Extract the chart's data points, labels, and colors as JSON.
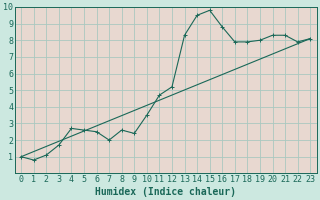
{
  "xlabel": "Humidex (Indice chaleur)",
  "ylabel": "",
  "fig_bg_color": "#cce8e0",
  "plot_bg_color": "#e8d8d0",
  "grid_color": "#aac8c0",
  "line_color": "#1a6858",
  "xlim": [
    -0.5,
    23.5
  ],
  "ylim": [
    0,
    10
  ],
  "xticks": [
    0,
    1,
    2,
    3,
    4,
    5,
    6,
    7,
    8,
    9,
    10,
    11,
    12,
    13,
    14,
    15,
    16,
    17,
    18,
    19,
    20,
    21,
    22,
    23
  ],
  "yticks": [
    1,
    2,
    3,
    4,
    5,
    6,
    7,
    8,
    9,
    10
  ],
  "curve1_x": [
    0,
    1,
    2,
    3,
    4,
    5,
    6,
    7,
    8,
    9,
    10,
    11,
    12,
    13,
    14,
    15,
    16,
    17,
    18,
    19,
    20,
    21,
    22,
    23
  ],
  "curve1_y": [
    1.0,
    0.8,
    1.1,
    1.7,
    2.7,
    2.6,
    2.5,
    2.0,
    2.6,
    2.4,
    3.5,
    4.7,
    5.2,
    8.3,
    9.5,
    9.8,
    8.8,
    7.9,
    7.9,
    8.0,
    8.3,
    8.3,
    7.9,
    8.1
  ],
  "curve2_x": [
    0,
    23
  ],
  "curve2_y": [
    1.0,
    8.1
  ],
  "fontsize_xlabel": 7,
  "fontsize_ticks": 6,
  "marker_size": 3,
  "line_width": 0.8
}
